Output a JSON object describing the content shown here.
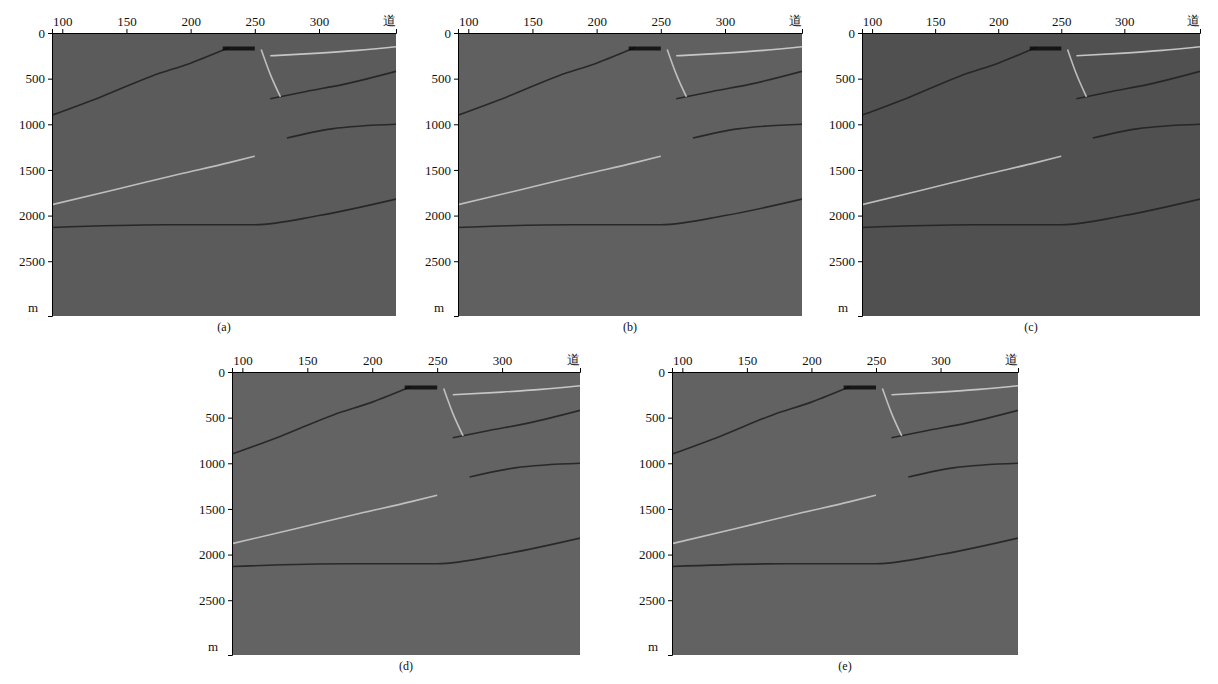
{
  "chart_data": [
    {
      "type": "line",
      "title": "(a)",
      "x_label": "道",
      "y_label": "m",
      "xlim": [
        92,
        360
      ],
      "ylim": [
        0,
        3100
      ],
      "xticks": [
        100,
        150,
        200,
        250,
        300
      ],
      "yticks": [
        0,
        500,
        1000,
        1500,
        2000,
        2500
      ],
      "series": [
        {
          "color": "#1e1e1e",
          "x": [
            92,
            130,
            170,
            200,
            230
          ],
          "values": [
            900,
            700,
            470,
            330,
            160
          ]
        },
        {
          "color": "#cfcfcf",
          "x": [
            92,
            140,
            190,
            230,
            250
          ],
          "values": [
            1880,
            1720,
            1550,
            1420,
            1350
          ]
        },
        {
          "color": "#1e1e1e",
          "x": [
            262,
            290,
            320,
            360
          ],
          "values": [
            720,
            640,
            560,
            420
          ]
        },
        {
          "color": "#d8d8d8",
          "x": [
            262,
            300,
            330,
            360
          ],
          "values": [
            250,
            220,
            190,
            150
          ]
        },
        {
          "color": "#1e1e1e",
          "x": [
            92,
            180,
            250,
            300,
            360
          ],
          "values": [
            2130,
            2100,
            2100,
            2000,
            1820
          ]
        },
        {
          "color": "#cfcfcf",
          "x": [
            255,
            262,
            270
          ],
          "values": [
            180,
            450,
            700
          ]
        },
        {
          "color": "#1e1e1e",
          "x": [
            275,
            310,
            360
          ],
          "values": [
            1150,
            1050,
            1000
          ]
        },
        {
          "color": "#0a0a0a",
          "x": [
            225,
            250
          ],
          "values": [
            170,
            170
          ]
        }
      ]
    },
    {
      "type": "line",
      "title": "(b)",
      "x_label": "道",
      "y_label": "m",
      "xlim": [
        92,
        360
      ],
      "ylim": [
        0,
        3100
      ],
      "xticks": [
        100,
        150,
        200,
        250,
        300
      ],
      "yticks": [
        0,
        500,
        1000,
        1500,
        2000,
        2500
      ],
      "series": [
        {
          "color": "#1e1e1e",
          "x": [
            92,
            130,
            170,
            200,
            230
          ],
          "values": [
            900,
            700,
            470,
            330,
            160
          ]
        },
        {
          "color": "#cfcfcf",
          "x": [
            92,
            140,
            190,
            230,
            250
          ],
          "values": [
            1880,
            1720,
            1550,
            1420,
            1350
          ]
        },
        {
          "color": "#1e1e1e",
          "x": [
            262,
            290,
            320,
            360
          ],
          "values": [
            720,
            640,
            560,
            420
          ]
        },
        {
          "color": "#d8d8d8",
          "x": [
            262,
            300,
            330,
            360
          ],
          "values": [
            250,
            220,
            190,
            150
          ]
        },
        {
          "color": "#1e1e1e",
          "x": [
            92,
            180,
            250,
            300,
            360
          ],
          "values": [
            2130,
            2100,
            2100,
            2000,
            1820
          ]
        },
        {
          "color": "#cfcfcf",
          "x": [
            255,
            262,
            270
          ],
          "values": [
            180,
            450,
            700
          ]
        },
        {
          "color": "#1e1e1e",
          "x": [
            275,
            310,
            360
          ],
          "values": [
            1150,
            1050,
            1000
          ]
        },
        {
          "color": "#0a0a0a",
          "x": [
            225,
            250
          ],
          "values": [
            170,
            170
          ]
        }
      ]
    },
    {
      "type": "line",
      "title": "(c)",
      "x_label": "道",
      "y_label": "m",
      "xlim": [
        92,
        360
      ],
      "ylim": [
        0,
        3100
      ],
      "xticks": [
        100,
        150,
        200,
        250,
        300
      ],
      "yticks": [
        0,
        500,
        1000,
        1500,
        2000,
        2500
      ],
      "series": [
        {
          "color": "#1e1e1e",
          "x": [
            92,
            130,
            170,
            200,
            230
          ],
          "values": [
            900,
            700,
            470,
            330,
            160
          ]
        },
        {
          "color": "#cfcfcf",
          "x": [
            92,
            140,
            190,
            230,
            250
          ],
          "values": [
            1880,
            1720,
            1550,
            1420,
            1350
          ]
        },
        {
          "color": "#1e1e1e",
          "x": [
            262,
            290,
            320,
            360
          ],
          "values": [
            720,
            640,
            560,
            420
          ]
        },
        {
          "color": "#d8d8d8",
          "x": [
            262,
            300,
            330,
            360
          ],
          "values": [
            250,
            220,
            190,
            150
          ]
        },
        {
          "color": "#1e1e1e",
          "x": [
            92,
            180,
            250,
            300,
            360
          ],
          "values": [
            2130,
            2100,
            2100,
            2000,
            1820
          ]
        },
        {
          "color": "#cfcfcf",
          "x": [
            255,
            262,
            270
          ],
          "values": [
            180,
            450,
            700
          ]
        },
        {
          "color": "#1e1e1e",
          "x": [
            275,
            310,
            360
          ],
          "values": [
            1150,
            1050,
            1000
          ]
        },
        {
          "color": "#0a0a0a",
          "x": [
            225,
            250
          ],
          "values": [
            170,
            170
          ]
        }
      ]
    },
    {
      "type": "line",
      "title": "(d)",
      "x_label": "道",
      "y_label": "m",
      "xlim": [
        92,
        360
      ],
      "ylim": [
        0,
        3100
      ],
      "xticks": [
        100,
        150,
        200,
        250,
        300
      ],
      "yticks": [
        0,
        500,
        1000,
        1500,
        2000,
        2500
      ],
      "series": [
        {
          "color": "#1e1e1e",
          "x": [
            92,
            130,
            170,
            200,
            230
          ],
          "values": [
            900,
            700,
            470,
            330,
            160
          ]
        },
        {
          "color": "#cfcfcf",
          "x": [
            92,
            140,
            190,
            230,
            250
          ],
          "values": [
            1880,
            1720,
            1550,
            1420,
            1350
          ]
        },
        {
          "color": "#1e1e1e",
          "x": [
            262,
            290,
            320,
            360
          ],
          "values": [
            720,
            640,
            560,
            420
          ]
        },
        {
          "color": "#d8d8d8",
          "x": [
            262,
            300,
            330,
            360
          ],
          "values": [
            250,
            220,
            190,
            150
          ]
        },
        {
          "color": "#1e1e1e",
          "x": [
            92,
            180,
            250,
            300,
            360
          ],
          "values": [
            2130,
            2100,
            2100,
            2000,
            1820
          ]
        },
        {
          "color": "#cfcfcf",
          "x": [
            255,
            262,
            270
          ],
          "values": [
            180,
            450,
            700
          ]
        },
        {
          "color": "#1e1e1e",
          "x": [
            275,
            310,
            360
          ],
          "values": [
            1150,
            1050,
            1000
          ]
        },
        {
          "color": "#0a0a0a",
          "x": [
            225,
            250
          ],
          "values": [
            170,
            170
          ]
        }
      ]
    },
    {
      "type": "line",
      "title": "(e)",
      "x_label": "道",
      "y_label": "m",
      "xlim": [
        92,
        360
      ],
      "ylim": [
        0,
        3100
      ],
      "xticks": [
        100,
        150,
        200,
        250,
        300
      ],
      "yticks": [
        0,
        500,
        1000,
        1500,
        2000,
        2500
      ],
      "series": [
        {
          "color": "#1e1e1e",
          "x": [
            92,
            130,
            170,
            200,
            230
          ],
          "values": [
            900,
            700,
            470,
            330,
            160
          ]
        },
        {
          "color": "#cfcfcf",
          "x": [
            92,
            140,
            190,
            230,
            250
          ],
          "values": [
            1880,
            1720,
            1550,
            1420,
            1350
          ]
        },
        {
          "color": "#1e1e1e",
          "x": [
            262,
            290,
            320,
            360
          ],
          "values": [
            720,
            640,
            560,
            420
          ]
        },
        {
          "color": "#d8d8d8",
          "x": [
            262,
            300,
            330,
            360
          ],
          "values": [
            250,
            220,
            190,
            150
          ]
        },
        {
          "color": "#1e1e1e",
          "x": [
            92,
            180,
            250,
            300,
            360
          ],
          "values": [
            2130,
            2100,
            2100,
            2000,
            1820
          ]
        },
        {
          "color": "#cfcfcf",
          "x": [
            255,
            262,
            270
          ],
          "values": [
            180,
            450,
            700
          ]
        },
        {
          "color": "#1e1e1e",
          "x": [
            275,
            310,
            360
          ],
          "values": [
            1150,
            1050,
            1000
          ]
        },
        {
          "color": "#0a0a0a",
          "x": [
            225,
            250
          ],
          "values": [
            170,
            170
          ]
        }
      ]
    }
  ]
}
